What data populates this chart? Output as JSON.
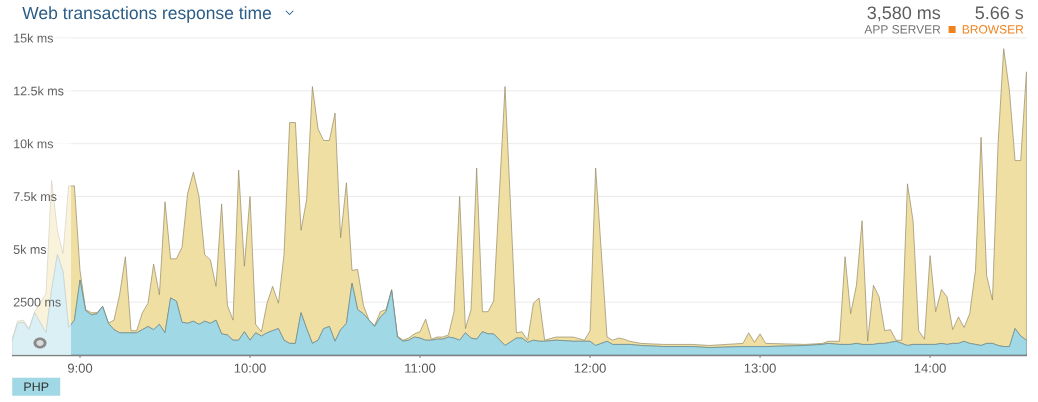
{
  "chart_data": {
    "type": "area",
    "title": "Web transactions response time",
    "stacked": true,
    "x": [
      8.6,
      8.633,
      8.667,
      8.7,
      8.733,
      8.8,
      8.833,
      8.867,
      8.9,
      8.933,
      8.967,
      9.0,
      9.033,
      9.067,
      9.1,
      9.133,
      9.167,
      9.2,
      9.233,
      9.267,
      9.3,
      9.333,
      9.367,
      9.4,
      9.433,
      9.467,
      9.5,
      9.533,
      9.567,
      9.6,
      9.633,
      9.667,
      9.7,
      9.733,
      9.767,
      9.8,
      9.833,
      9.867,
      9.9,
      9.933,
      9.967,
      10.0,
      10.033,
      10.067,
      10.1,
      10.133,
      10.167,
      10.2,
      10.233,
      10.267,
      10.3,
      10.333,
      10.367,
      10.4,
      10.433,
      10.467,
      10.5,
      10.533,
      10.567,
      10.6,
      10.633,
      10.667,
      10.7,
      10.733,
      10.767,
      10.8,
      10.833,
      10.867,
      10.9,
      10.933,
      10.967,
      11.0,
      11.033,
      11.067,
      11.1,
      11.133,
      11.167,
      11.2,
      11.233,
      11.267,
      11.3,
      11.333,
      11.367,
      11.4,
      11.433,
      11.5,
      11.567,
      11.6,
      11.633,
      11.667,
      11.7,
      11.733,
      11.8,
      11.9,
      11.967,
      12.0,
      12.033,
      12.1,
      12.133,
      12.167,
      12.2,
      12.233,
      12.3,
      12.433,
      12.6,
      12.7,
      12.9,
      12.933,
      12.967,
      13.0,
      13.033,
      13.267,
      13.367,
      13.4,
      13.467,
      13.5,
      13.533,
      13.567,
      13.6,
      13.633,
      13.667,
      13.7,
      13.733,
      13.767,
      13.8,
      13.833,
      13.867,
      13.9,
      13.933,
      13.967,
      14.0,
      14.033,
      14.067,
      14.1,
      14.133,
      14.167,
      14.2,
      14.233,
      14.267,
      14.3,
      14.333,
      14.367,
      14.4,
      14.433,
      14.467,
      14.5,
      14.533,
      14.567
    ],
    "series": [
      {
        "name": "PHP",
        "color": "#a0d8e5",
        "values": [
          650,
          1500,
          1550,
          1200,
          2000,
          1050,
          3100,
          4750,
          3950,
          1300,
          1650,
          3550,
          2100,
          1900,
          1950,
          2300,
          1500,
          1200,
          1050,
          1050,
          1050,
          1050,
          1200,
          1350,
          1200,
          1450,
          1050,
          2700,
          2550,
          1550,
          1500,
          1600,
          1450,
          1600,
          1500,
          1650,
          1000,
          950,
          700,
          700,
          1100,
          700,
          1050,
          900,
          1050,
          1150,
          1250,
          700,
          550,
          550,
          2000,
          1250,
          550,
          700,
          1250,
          1350,
          650,
          1200,
          1500,
          3400,
          2150,
          1950,
          1650,
          1350,
          1800,
          2050,
          3050,
          850,
          650,
          700,
          850,
          800,
          700,
          700,
          750,
          750,
          850,
          800,
          700,
          1050,
          800,
          750,
          1100,
          1000,
          1000,
          450,
          800,
          800,
          600,
          700,
          650,
          650,
          700,
          650,
          650,
          650,
          450,
          650,
          500,
          500,
          500,
          500,
          450,
          400,
          400,
          350,
          400,
          400,
          400,
          400,
          400,
          450,
          500,
          550,
          500,
          500,
          500,
          550,
          500,
          500,
          500,
          550,
          550,
          600,
          650,
          550,
          450,
          500,
          500,
          500,
          500,
          500,
          550,
          500,
          550,
          550,
          650,
          550,
          500,
          450,
          550,
          550,
          450,
          400,
          400,
          1250,
          900,
          700
        ]
      },
      {
        "color": "#f0dfa3",
        "values": [
          100,
          100,
          100,
          50,
          50,
          1850,
          5150,
          1150,
          850,
          6700,
          6350,
          450,
          50,
          100,
          50,
          0,
          0,
          450,
          1800,
          3600,
          100,
          100,
          800,
          1100,
          3100,
          1400,
          6200,
          1850,
          2000,
          3550,
          6150,
          7050,
          6050,
          3150,
          3000,
          1600,
          6150,
          1400,
          950,
          8050,
          3100,
          6800,
          400,
          200,
          1400,
          2100,
          1200,
          4050,
          10450,
          10450,
          3900,
          6100,
          12150,
          10000,
          8900,
          8800,
          10800,
          4350,
          6650,
          600,
          1900,
          400,
          0,
          50,
          250,
          100,
          50,
          50,
          50,
          100,
          150,
          300,
          1000,
          50,
          100,
          100,
          100,
          1250,
          6800,
          200,
          1350,
          8100,
          950,
          1050,
          1550,
          12250,
          250,
          300,
          100,
          1750,
          2050,
          50,
          150,
          200,
          50,
          500,
          8400,
          200,
          200,
          300,
          250,
          150,
          100,
          100,
          100,
          100,
          150,
          650,
          200,
          600,
          150,
          50,
          50,
          100,
          150,
          4150,
          1450,
          2750,
          5850,
          150,
          2800,
          2200,
          600,
          600,
          50,
          150,
          7650,
          5850,
          650,
          250,
          4200,
          1550,
          2550,
          2250,
          650,
          1250,
          650,
          1400,
          3500,
          9850,
          3200,
          2050,
          9550,
          14100,
          12100,
          7950,
          8300,
          12700
        ]
      }
    ],
    "xlim": [
      8.6,
      14.57
    ],
    "xticks": [
      {
        "value": 9,
        "label": "9:00"
      },
      {
        "value": 10,
        "label": "10:00"
      },
      {
        "value": 11,
        "label": "11:00"
      },
      {
        "value": 12,
        "label": "12:00"
      },
      {
        "value": 13,
        "label": "13:00"
      },
      {
        "value": 14,
        "label": "14:00"
      }
    ],
    "ylim": [
      0,
      15000
    ],
    "yticks": [
      {
        "value": 2500,
        "label": "2500 ms"
      },
      {
        "value": 5000,
        "label": "5k ms"
      },
      {
        "value": 7500,
        "label": "7.5k ms"
      },
      {
        "value": 10000,
        "label": "10k ms"
      },
      {
        "value": 12500,
        "label": "12.5k ms"
      },
      {
        "value": 15000,
        "label": "15k ms"
      }
    ],
    "grid": "y",
    "legend": "bottom left",
    "bands": [
      {
        "axis": "x",
        "from": 8.6,
        "to": 8.947,
        "color": "#ffffff"
      }
    ],
    "annotations": [
      "3,580 ms",
      "APP SERVER",
      "5.66 s",
      "BROWSER"
    ]
  }
}
